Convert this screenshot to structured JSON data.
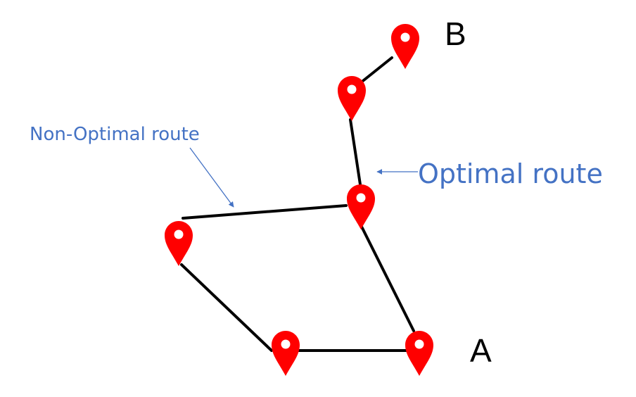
{
  "labels": {
    "start": "A",
    "end": "B"
  },
  "annotations": {
    "non_optimal": "Non-Optimal route",
    "optimal": "Optimal route"
  },
  "colors": {
    "pin": "#ff0000",
    "edge": "#000000",
    "annotation": "#4472c4",
    "background": "#ffffff"
  },
  "icons": {
    "location": "map-pin-icon"
  }
}
